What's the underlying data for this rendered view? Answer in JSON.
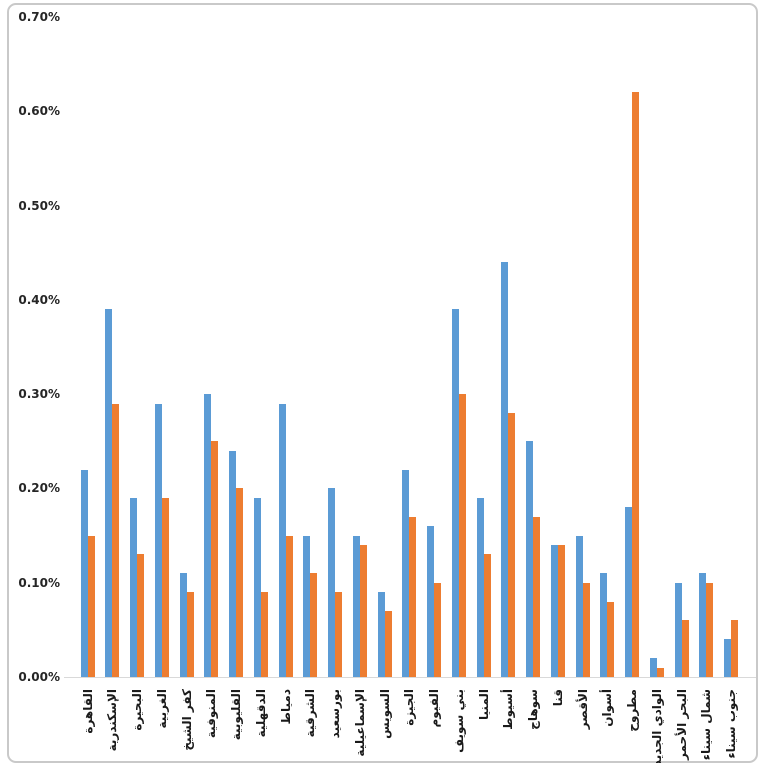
{
  "frame": {
    "border_color": "#c9c9c9",
    "background": "#ffffff"
  },
  "chart_data": {
    "type": "bar",
    "title": "",
    "xlabel": "",
    "ylabel": "",
    "grid": false,
    "legend": false,
    "unit": "%",
    "y_axis": {
      "min": 0,
      "max": 0.7,
      "ticks": [
        "0.00%",
        "0.10%",
        "0.20%",
        "0.30%",
        "0.40%",
        "0.50%",
        "0.60%",
        "0.70%"
      ]
    },
    "axis_colors": {
      "axis_line": "#d9d9d9",
      "tick_text": "#262626"
    },
    "categories": [
      "القاهرة",
      "الإسكندرية",
      "البحيرة",
      "الغربية",
      "كفر الشيخ",
      "المنوفية",
      "القليوبية",
      "الدقهلية",
      "دمياط",
      "الشرقية",
      "بورسعيد",
      "الإسماعيلية",
      "السويس",
      "الجيزة",
      "الفيوم",
      "بني سويف",
      "المنيا",
      "أسيوط",
      "سوهاج",
      "قنا",
      "الأقصر",
      "أسوان",
      "مطروح",
      "الوادي الجديد",
      "البحر الأحمر",
      "شمال سيناء",
      "جنوب سيناء"
    ],
    "series": [
      {
        "name": "series-1-blue",
        "color": "#5B9BD5",
        "values": [
          0.22,
          0.39,
          0.19,
          0.29,
          0.11,
          0.3,
          0.24,
          0.19,
          0.29,
          0.15,
          0.2,
          0.15,
          0.09,
          0.22,
          0.16,
          0.39,
          0.19,
          0.44,
          0.25,
          0.14,
          0.15,
          0.11,
          0.18,
          0.02,
          0.1,
          0.11,
          0.04
        ]
      },
      {
        "name": "series-2-orange",
        "color": "#ED7D31",
        "values": [
          0.15,
          0.29,
          0.13,
          0.19,
          0.09,
          0.25,
          0.2,
          0.09,
          0.15,
          0.11,
          0.09,
          0.14,
          0.07,
          0.17,
          0.1,
          0.3,
          0.13,
          0.28,
          0.17,
          0.14,
          0.1,
          0.08,
          0.62,
          0.01,
          0.06,
          0.1,
          0.06
        ]
      }
    ]
  }
}
